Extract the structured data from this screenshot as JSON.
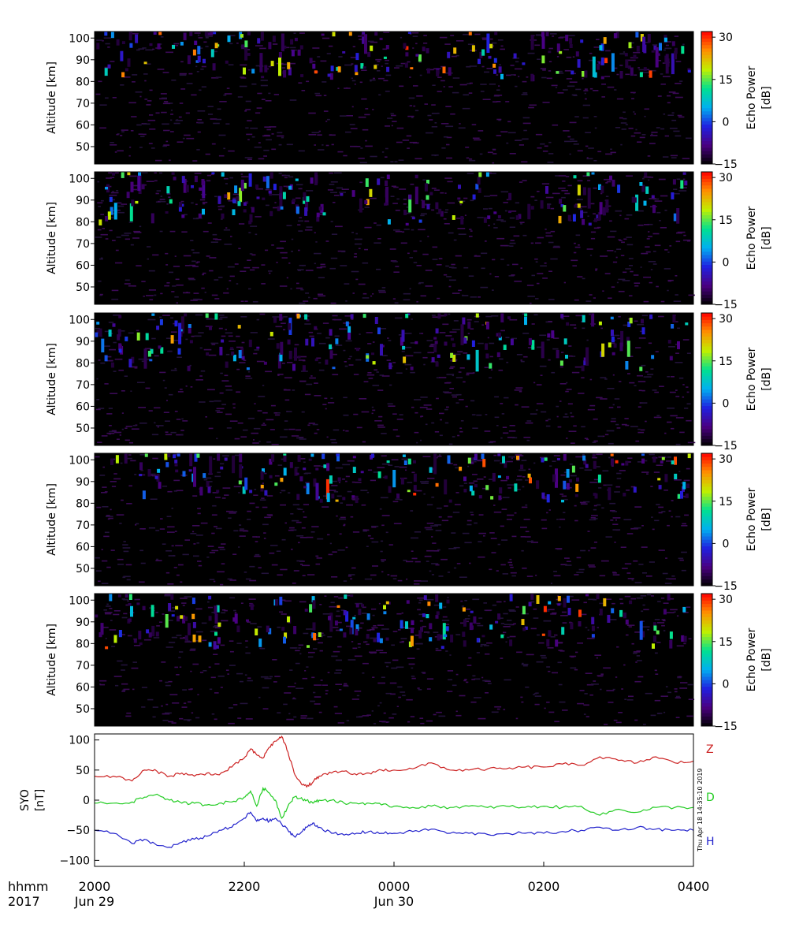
{
  "time_axis": {
    "ticks": [
      {
        "time": "2017-06-29T20:00",
        "label": "2000"
      },
      {
        "time": "2017-06-29T22:00",
        "label": "2200"
      },
      {
        "time": "2017-06-30T00:00",
        "label": "0000"
      },
      {
        "time": "2017-06-30T02:00",
        "label": "0200"
      },
      {
        "time": "2017-06-30T04:00",
        "label": "0400"
      }
    ],
    "date_labels": [
      {
        "time": "2017-06-29T20:00",
        "label": "Jun 29"
      },
      {
        "time": "2017-06-30T00:00",
        "label": "Jun 30"
      }
    ],
    "row_label_format": "hhmm",
    "row_label_year": "2017"
  },
  "timestamp": "Thu Apr 18 14:35:10 2019",
  "colors": {
    "Z": "#cc2222",
    "D": "#22cc22",
    "H": "#2222cc",
    "radar_background": "#000000",
    "colormap": [
      "#000000",
      "#4b0082",
      "#2020e0",
      "#00b0f0",
      "#00e090",
      "#c0f000",
      "#ff9000",
      "#ff0000"
    ]
  },
  "chart_data": [
    {
      "type": "heatmap",
      "panel": 1,
      "ylabel": "Altitude [km]",
      "yticks": [
        50,
        60,
        70,
        80,
        90,
        100
      ],
      "ylim": [
        42,
        103
      ],
      "xlim": [
        "2017-06-29T20:00",
        "2017-06-30T04:00"
      ],
      "colorbar": {
        "label_line1": "Echo Power",
        "label_line2": "[dB]",
        "ticks": [
          30,
          15,
          0,
          -15
        ],
        "range": [
          -15,
          32
        ]
      },
      "echo_layer_km": [
        80,
        102
      ],
      "max_echo_dB": 30
    },
    {
      "type": "heatmap",
      "panel": 2,
      "ylabel": "Altitude [km]",
      "yticks": [
        50,
        60,
        70,
        80,
        90,
        100
      ],
      "ylim": [
        42,
        103
      ],
      "xlim": [
        "2017-06-29T20:00",
        "2017-06-30T04:00"
      ],
      "colorbar": {
        "label_line1": "Echo Power",
        "label_line2": "[dB]",
        "ticks": [
          30,
          15,
          0,
          -15
        ],
        "range": [
          -15,
          32
        ]
      },
      "echo_layer_km": [
        78,
        102
      ],
      "max_echo_dB": 25
    },
    {
      "type": "heatmap",
      "panel": 3,
      "ylabel": "Altitude [km]",
      "yticks": [
        50,
        60,
        70,
        80,
        90,
        100
      ],
      "ylim": [
        42,
        103
      ],
      "xlim": [
        "2017-06-29T20:00",
        "2017-06-30T04:00"
      ],
      "colorbar": {
        "label_line1": "Echo Power",
        "label_line2": "[dB]",
        "ticks": [
          30,
          15,
          0,
          -15
        ],
        "range": [
          -15,
          32
        ]
      },
      "echo_layer_km": [
        76,
        102
      ],
      "max_echo_dB": 25
    },
    {
      "type": "heatmap",
      "panel": 4,
      "ylabel": "Altitude [km]",
      "yticks": [
        50,
        60,
        70,
        80,
        90,
        100
      ],
      "ylim": [
        42,
        103
      ],
      "xlim": [
        "2017-06-29T20:00",
        "2017-06-30T04:00"
      ],
      "colorbar": {
        "label_line1": "Echo Power",
        "label_line2": "[dB]",
        "ticks": [
          30,
          15,
          0,
          -15
        ],
        "range": [
          -15,
          32
        ]
      },
      "echo_layer_km": [
        80,
        102
      ],
      "max_echo_dB": 30
    },
    {
      "type": "heatmap",
      "panel": 5,
      "ylabel": "Altitude [km]",
      "yticks": [
        50,
        60,
        70,
        80,
        90,
        100
      ],
      "ylim": [
        42,
        103
      ],
      "xlim": [
        "2017-06-29T20:00",
        "2017-06-30T04:00"
      ],
      "colorbar": {
        "label_line1": "Echo Power",
        "label_line2": "[dB]",
        "ticks": [
          30,
          15,
          0,
          -15
        ],
        "range": [
          -15,
          32
        ]
      },
      "echo_layer_km": [
        77,
        102
      ],
      "max_echo_dB": 30
    },
    {
      "type": "line",
      "panel": 6,
      "ylabel_line1": "SYO",
      "ylabel_line2": "[nT]",
      "yticks": [
        100,
        50,
        0,
        -50,
        -100
      ],
      "ylim": [
        -110,
        110
      ],
      "xlim": [
        "2017-06-29T20:00",
        "2017-06-30T04:00"
      ],
      "x": [
        "2017-06-29T20:00",
        "2017-06-29T20:15",
        "2017-06-29T20:30",
        "2017-06-29T20:40",
        "2017-06-29T20:50",
        "2017-06-29T21:00",
        "2017-06-29T21:10",
        "2017-06-29T21:20",
        "2017-06-29T21:30",
        "2017-06-29T21:40",
        "2017-06-29T21:50",
        "2017-06-29T22:00",
        "2017-06-29T22:05",
        "2017-06-29T22:10",
        "2017-06-29T22:15",
        "2017-06-29T22:20",
        "2017-06-29T22:25",
        "2017-06-29T22:30",
        "2017-06-29T22:35",
        "2017-06-29T22:40",
        "2017-06-29T22:45",
        "2017-06-29T22:50",
        "2017-06-29T22:55",
        "2017-06-29T23:00",
        "2017-06-29T23:10",
        "2017-06-29T23:20",
        "2017-06-29T23:30",
        "2017-06-29T23:40",
        "2017-06-29T23:50",
        "2017-06-30T00:00",
        "2017-06-30T00:15",
        "2017-06-30T00:30",
        "2017-06-30T00:45",
        "2017-06-30T01:00",
        "2017-06-30T01:15",
        "2017-06-30T01:30",
        "2017-06-30T01:45",
        "2017-06-30T02:00",
        "2017-06-30T02:15",
        "2017-06-30T02:30",
        "2017-06-30T02:45",
        "2017-06-30T03:00",
        "2017-06-30T03:15",
        "2017-06-30T03:30",
        "2017-06-30T03:45",
        "2017-06-30T04:00"
      ],
      "series": [
        {
          "name": "Z",
          "values": [
            40,
            40,
            32,
            50,
            48,
            40,
            45,
            40,
            45,
            42,
            55,
            70,
            85,
            75,
            70,
            88,
            98,
            106,
            80,
            45,
            30,
            22,
            30,
            40,
            45,
            48,
            42,
            45,
            50,
            50,
            52,
            62,
            50,
            50,
            52,
            52,
            55,
            55,
            60,
            58,
            72,
            66,
            62,
            72,
            62,
            65
          ]
        },
        {
          "name": "D",
          "values": [
            -5,
            -5,
            -3,
            5,
            10,
            0,
            -5,
            -5,
            -8,
            -5,
            -3,
            5,
            15,
            -10,
            20,
            12,
            0,
            -30,
            -10,
            5,
            3,
            0,
            -5,
            0,
            0,
            -5,
            -5,
            -5,
            -8,
            -10,
            -12,
            -10,
            -12,
            -10,
            -12,
            -10,
            -12,
            -10,
            -12,
            -10,
            -25,
            -15,
            -20,
            -12,
            -12,
            -12
          ]
        },
        {
          "name": "H",
          "values": [
            -50,
            -55,
            -72,
            -65,
            -75,
            -78,
            -70,
            -65,
            -60,
            -50,
            -45,
            -30,
            -20,
            -35,
            -30,
            -35,
            -30,
            -40,
            -50,
            -60,
            -55,
            -45,
            -38,
            -45,
            -55,
            -58,
            -55,
            -52,
            -55,
            -55,
            -52,
            -48,
            -55,
            -55,
            -57,
            -55,
            -55,
            -55,
            -52,
            -50,
            -45,
            -50,
            -45,
            -48,
            -50,
            -50
          ]
        }
      ]
    }
  ]
}
